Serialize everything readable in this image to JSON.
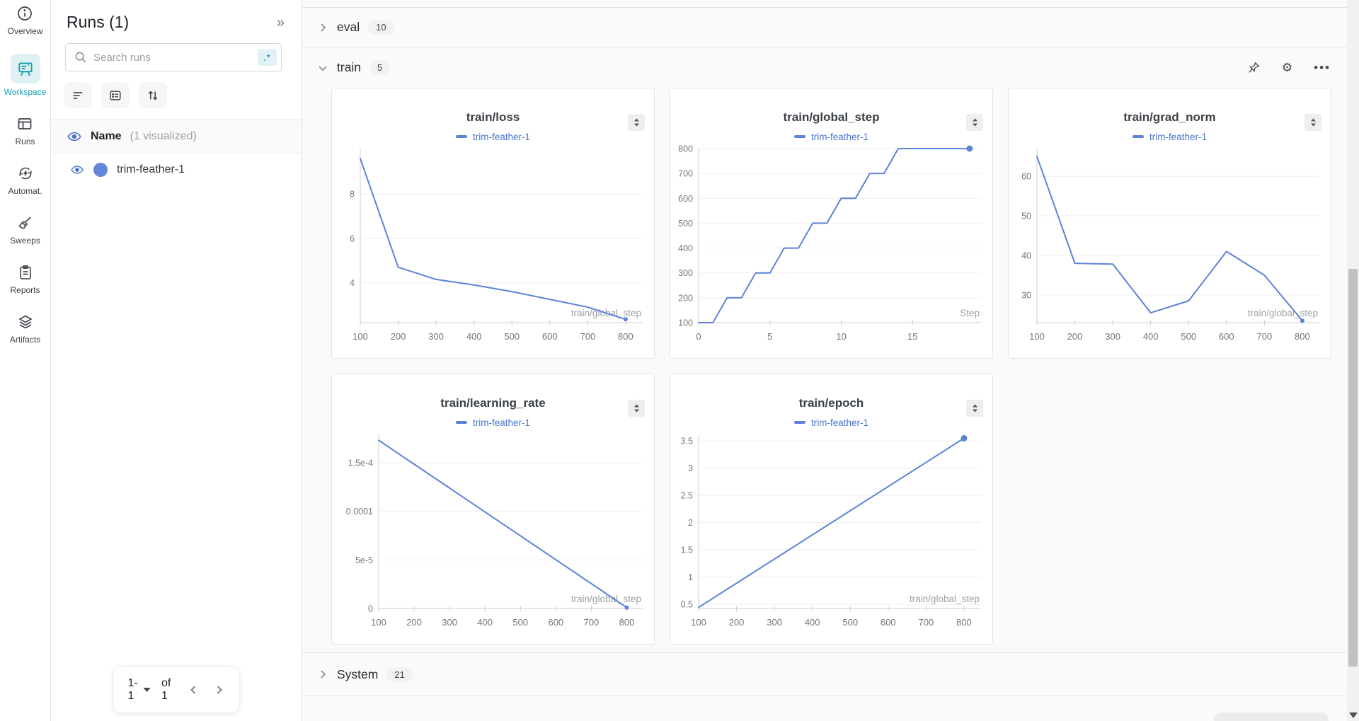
{
  "nav": {
    "items": [
      {
        "id": "overview",
        "label": "Overview"
      },
      {
        "id": "workspace",
        "label": "Workspace"
      },
      {
        "id": "runs",
        "label": "Runs"
      },
      {
        "id": "automations",
        "label": "Automat."
      },
      {
        "id": "sweeps",
        "label": "Sweeps"
      },
      {
        "id": "reports",
        "label": "Reports"
      },
      {
        "id": "artifacts",
        "label": "Artifacts"
      }
    ]
  },
  "runs_panel": {
    "title": "Runs (1)",
    "collapse_icon": "»",
    "search": {
      "placeholder": "Search runs",
      "regex_label": ".*"
    },
    "table_header": {
      "name": "Name",
      "visualized": "(1 visualized)"
    },
    "runs": [
      {
        "name": "trim-feather-1",
        "color": "#6387d9"
      }
    ],
    "pagination": {
      "range": "1-1",
      "of_label": "of 1"
    }
  },
  "sections": {
    "eval": {
      "label": "eval",
      "count": "10"
    },
    "train": {
      "label": "train",
      "count": "5"
    },
    "system": {
      "label": "System",
      "count": "21"
    }
  },
  "toolbar": {
    "gear": "⚙",
    "dots": "•••"
  },
  "colors": {
    "accent_teal": "#0e9fb5",
    "line_blue": "#5d82d8",
    "legend_blue": "#4875ce",
    "run_dot": "#6387d9",
    "grid": "#efefef",
    "axis": "#cfcfcf",
    "tick_text": "#757575",
    "xlabel_text": "#9da2a6"
  },
  "chart_data": [
    {
      "type": "line",
      "title": "train/loss",
      "legend": "trim-feather-1",
      "xlabel": "train/global_step",
      "x": [
        100,
        200,
        300,
        400,
        500,
        600,
        700,
        800
      ],
      "y": [
        9.6,
        4.7,
        4.15,
        3.9,
        3.6,
        3.25,
        2.9,
        2.35
      ],
      "xlim": [
        100,
        845
      ],
      "ylim": [
        2.2,
        10.05
      ],
      "xtick_values": [
        100,
        200,
        300,
        400,
        500,
        600,
        700,
        800
      ],
      "xtick_labels": [
        "100",
        "200",
        "300",
        "400",
        "500",
        "600",
        "700",
        "800"
      ],
      "ytick_values": [
        4,
        6,
        8
      ],
      "ytick_labels": [
        "4",
        "6",
        "8"
      ],
      "end_dot": true,
      "dot_r": 3
    },
    {
      "type": "line",
      "title": "train/global_step",
      "legend": "trim-feather-1",
      "xlabel": "Step",
      "x": [
        0,
        1,
        2,
        3,
        4,
        5,
        6,
        7,
        8,
        9,
        10,
        11,
        12,
        13,
        14,
        19
      ],
      "y": [
        100,
        100,
        200,
        200,
        300,
        300,
        400,
        400,
        500,
        500,
        600,
        600,
        700,
        700,
        800,
        800
      ],
      "xlim": [
        0,
        19.8
      ],
      "ylim": [
        100,
        800
      ],
      "xtick_values": [
        0,
        5,
        10,
        15
      ],
      "xtick_labels": [
        "0",
        "5",
        "10",
        "15"
      ],
      "ytick_values": [
        100,
        200,
        300,
        400,
        500,
        600,
        700,
        800
      ],
      "ytick_labels": [
        "100",
        "200",
        "300",
        "400",
        "500",
        "600",
        "700",
        "800"
      ],
      "end_dot": true,
      "dot_r": 4.5
    },
    {
      "type": "line",
      "title": "train/grad_norm",
      "legend": "trim-feather-1",
      "xlabel": "train/global_step",
      "x": [
        100,
        200,
        300,
        400,
        500,
        600,
        700,
        800
      ],
      "y": [
        65,
        38,
        37.8,
        25.5,
        28.5,
        41,
        35,
        23.5
      ],
      "xlim": [
        100,
        845
      ],
      "ylim": [
        23,
        67
      ],
      "xtick_values": [
        100,
        200,
        300,
        400,
        500,
        600,
        700,
        800
      ],
      "xtick_labels": [
        "100",
        "200",
        "300",
        "400",
        "500",
        "600",
        "700",
        "800"
      ],
      "ytick_values": [
        30,
        40,
        50,
        60
      ],
      "ytick_labels": [
        "30",
        "40",
        "50",
        "60"
      ],
      "end_dot": true,
      "dot_r": 3
    },
    {
      "type": "line",
      "title": "train/learning_rate",
      "legend": "trim-feather-1",
      "xlabel": "train/global_step",
      "x": [
        100,
        800
      ],
      "y": [
        0.000173,
        1e-06
      ],
      "xlim": [
        100,
        845
      ],
      "ylim": [
        0,
        0.000179
      ],
      "xtick_values": [
        100,
        200,
        300,
        400,
        500,
        600,
        700,
        800
      ],
      "xtick_labels": [
        "100",
        "200",
        "300",
        "400",
        "500",
        "600",
        "700",
        "800"
      ],
      "ytick_values": [
        0,
        5e-05,
        0.0001,
        0.00015
      ],
      "ytick_labels": [
        "0",
        "5e-5",
        "0.0001",
        "1.5e-4"
      ],
      "end_dot": true,
      "dot_r": 3
    },
    {
      "type": "line",
      "title": "train/epoch",
      "legend": "trim-feather-1",
      "xlabel": "train/global_step",
      "x": [
        100,
        800
      ],
      "y": [
        0.44,
        3.55
      ],
      "xlim": [
        100,
        845
      ],
      "ylim": [
        0.42,
        3.62
      ],
      "xtick_values": [
        100,
        200,
        300,
        400,
        500,
        600,
        700,
        800
      ],
      "xtick_labels": [
        "100",
        "200",
        "300",
        "400",
        "500",
        "600",
        "700",
        "800"
      ],
      "ytick_values": [
        0.5,
        1,
        1.5,
        2,
        2.5,
        3,
        3.5
      ],
      "ytick_labels": [
        "0.5",
        "1",
        "1.5",
        "2",
        "2.5",
        "3",
        "3.5"
      ],
      "end_dot": true,
      "dot_r": 4.5
    }
  ]
}
